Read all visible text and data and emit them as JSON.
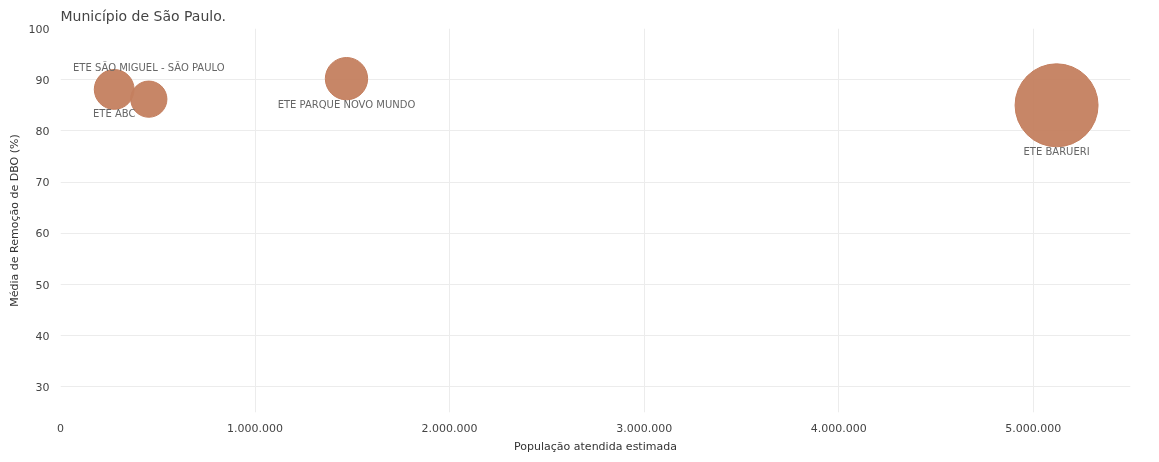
{
  "chart_data": {
    "type": "bubble",
    "title": "Município de São Paulo.",
    "xlabel": "População atendida estimada",
    "ylabel": "Média de Remoção de DBO (%)",
    "series": [
      {
        "name": "ETE ABC",
        "color": "#c47f5f",
        "x": [
          276000
        ],
        "values": [
          88.1
        ],
        "sizes": [
          0.23
        ]
      },
      {
        "name": "ETE SÃO MIGUEL - SÃO PAULO",
        "color": "#c47f5f",
        "x": [
          454000
        ],
        "values": [
          86.2
        ],
        "sizes": [
          0.19
        ]
      },
      {
        "name": "ETE PARQUE NOVO MUNDO",
        "color": "#c47f5f",
        "x": [
          1470000
        ],
        "values": [
          90.2
        ],
        "sizes": [
          0.26
        ]
      },
      {
        "name": "ETE BARUERI",
        "color": "#c47f5f",
        "x": [
          5120000
        ],
        "values": [
          85.0
        ],
        "sizes": [
          1
        ]
      }
    ],
    "xlim": [
      0,
      5500000
    ],
    "ylim": [
      25,
      100
    ],
    "xticks": [
      0,
      {
        "value": 1000000,
        "label": "1.000.000"
      },
      {
        "value": 2000000,
        "label": "2.000.000"
      },
      {
        "value": 3000000,
        "label": "3.000.000"
      },
      {
        "value": 4000000,
        "label": "4.000.000"
      },
      {
        "value": 5000000,
        "label": "5.000.000"
      }
    ],
    "yticks": [
      30,
      40,
      50,
      60,
      70,
      80,
      90,
      100
    ],
    "grid": true
  }
}
